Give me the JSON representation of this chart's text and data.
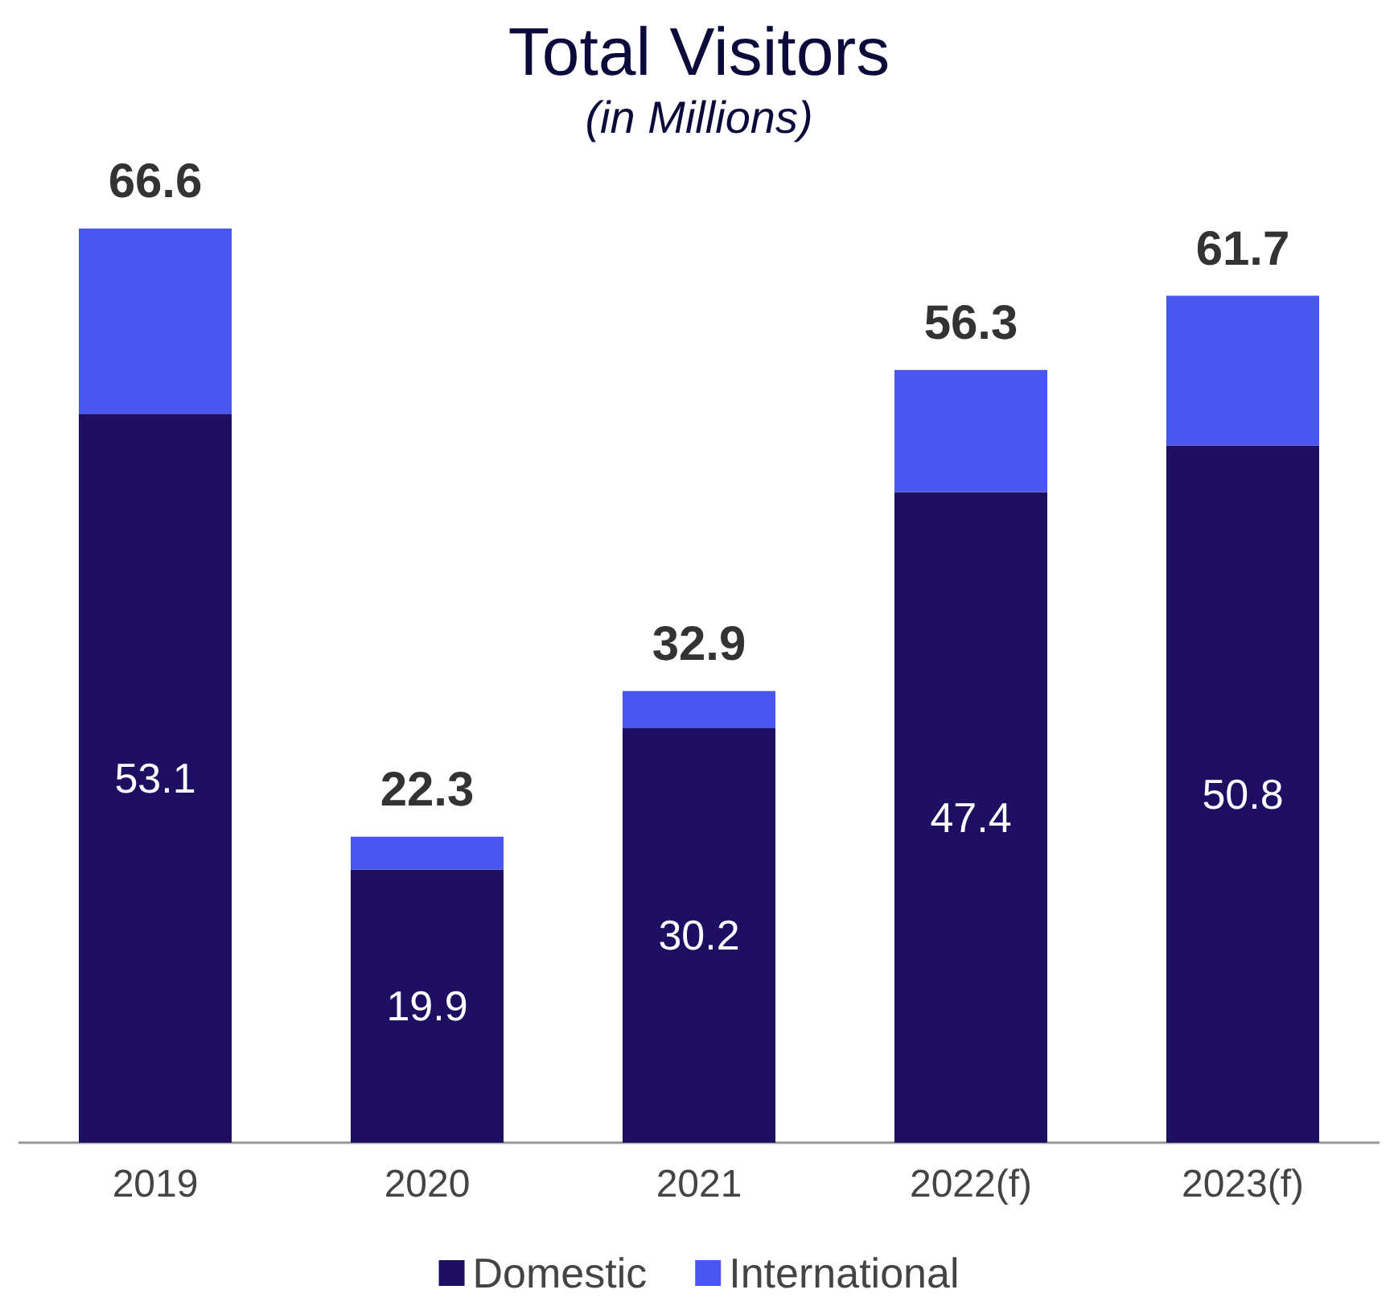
{
  "chart_data": {
    "type": "bar",
    "title": "Total Visitors",
    "subtitle": "(in Millions)",
    "categories": [
      "2019",
      "2020",
      "2021",
      "2022(f)",
      "2023(f)"
    ],
    "stacked": true,
    "series": [
      {
        "name": "Domestic",
        "color": "#1e0f63",
        "values": [
          53.1,
          19.9,
          30.2,
          47.4,
          50.8
        ],
        "value_labels": [
          "53.1",
          "19.9",
          "30.2",
          "47.4",
          "50.8"
        ]
      },
      {
        "name": "International",
        "color": "#4a56f0",
        "values": [
          13.5,
          2.4,
          2.7,
          8.9,
          10.9
        ]
      }
    ],
    "totals": [
      "66.6",
      "22.3",
      "32.9",
      "56.3",
      "61.7"
    ],
    "legend": "bottom"
  }
}
